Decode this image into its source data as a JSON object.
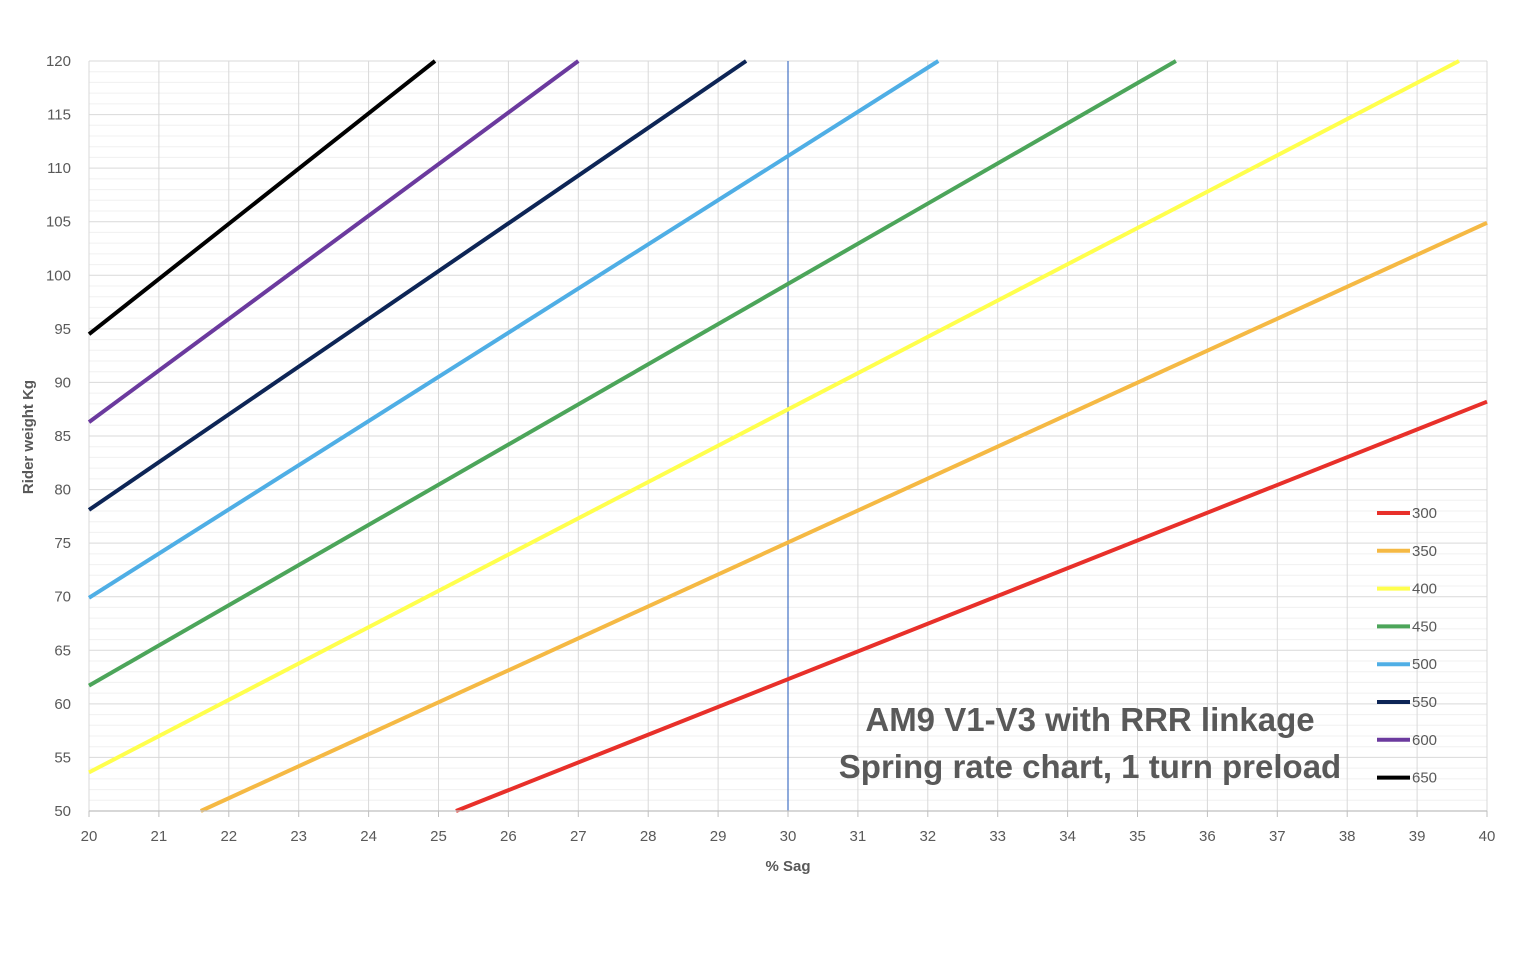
{
  "chart_data": {
    "type": "line",
    "title": "AM9 V1-V3 with RRR linkage",
    "subtitle": "Spring rate chart, 1 turn preload",
    "xlabel": "% Sag",
    "ylabel": "Rider weight Kg",
    "xlim": [
      20,
      40
    ],
    "ylim": [
      50,
      120
    ],
    "x_ticks": [
      20,
      21,
      22,
      23,
      24,
      25,
      26,
      27,
      28,
      29,
      30,
      31,
      32,
      33,
      34,
      35,
      36,
      37,
      38,
      39,
      40
    ],
    "y_ticks": [
      50,
      55,
      60,
      65,
      70,
      75,
      80,
      85,
      90,
      95,
      100,
      105,
      110,
      115,
      120
    ],
    "minor_y_step": 1,
    "grid": true,
    "reference_line_x": 30,
    "reference_line_color": "#4472C4",
    "legend_position": "right",
    "series": [
      {
        "name": "300",
        "color": "#E8302A",
        "x": [
          25.25,
          40
        ],
        "y": [
          50,
          88.2
        ]
      },
      {
        "name": "350",
        "color": "#F5B944",
        "x": [
          21.6,
          40
        ],
        "y": [
          50,
          104.9
        ]
      },
      {
        "name": "400",
        "color": "#FFFF4D",
        "x": [
          20,
          39.6
        ],
        "y": [
          53.6,
          120
        ]
      },
      {
        "name": "450",
        "color": "#4CA55A",
        "x": [
          20,
          35.55
        ],
        "y": [
          61.7,
          120
        ]
      },
      {
        "name": "500",
        "color": "#4FAEE5",
        "x": [
          20,
          32.15
        ],
        "y": [
          69.9,
          120
        ]
      },
      {
        "name": "550",
        "color": "#0D2556",
        "x": [
          20,
          29.4
        ],
        "y": [
          78.1,
          120
        ]
      },
      {
        "name": "600",
        "color": "#6B3A9E",
        "x": [
          20,
          27.0
        ],
        "y": [
          86.3,
          120
        ]
      },
      {
        "name": "650",
        "color": "#000000",
        "x": [
          20,
          24.95
        ],
        "y": [
          94.5,
          120
        ]
      }
    ]
  }
}
